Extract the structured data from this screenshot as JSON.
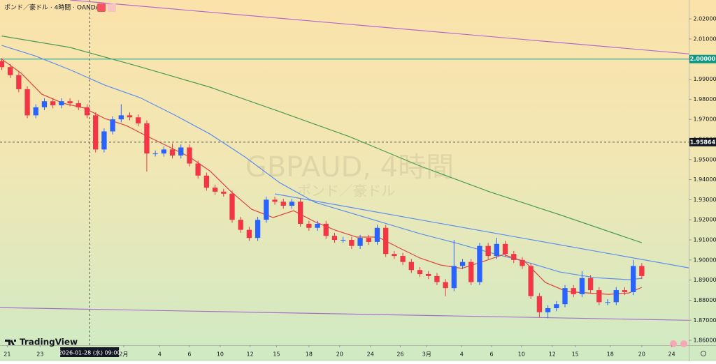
{
  "chart_data": {
    "type": "candlestick",
    "title": "ポンド／豪ドル · 4時間 · OANDA",
    "watermark": "GBPAUD, 4時間",
    "watermark_subtitle": "ポンド／豪ドル",
    "brand": "TradingView",
    "categories": [
      null,
      null,
      null,
      null,
      null,
      null,
      null,
      null,
      null,
      null,
      null,
      null,
      null,
      null,
      null,
      null,
      null,
      null,
      null,
      null,
      null,
      null,
      null,
      null,
      null,
      null,
      null,
      null,
      null,
      null,
      null,
      null,
      null,
      null,
      null,
      null,
      null,
      null,
      null,
      null,
      null,
      null,
      null,
      null,
      null,
      null,
      null,
      null,
      null,
      null,
      null,
      null,
      null,
      null,
      null,
      null,
      null,
      null,
      null,
      null,
      null,
      null,
      null,
      null,
      null,
      null,
      null,
      null,
      null,
      null,
      null,
      null,
      null,
      null,
      null,
      null
    ],
    "open": [
      1.999,
      1.996,
      1.992,
      1.985,
      1.972,
      1.976,
      1.979,
      1.977,
      1.979,
      1.978,
      1.976,
      1.972,
      1.955,
      1.964,
      1.97,
      1.972,
      1.971,
      1.968,
      1.953,
      1.953,
      1.955,
      1.952,
      1.956,
      1.948,
      1.942,
      1.936,
      1.934,
      1.933,
      1.92,
      1.915,
      1.911,
      1.92,
      1.93,
      1.929,
      1.927,
      1.929,
      1.918,
      1.916,
      1.918,
      1.912,
      1.91,
      1.91,
      1.907,
      1.911,
      1.909,
      1.916,
      1.903,
      1.902,
      1.899,
      1.895,
      1.893,
      1.892,
      1.889,
      1.886,
      1.897,
      1.899,
      1.889,
      1.907,
      1.902,
      1.908,
      1.903,
      1.9,
      1.897,
      1.882,
      1.874,
      1.876,
      1.878,
      1.886,
      1.883,
      1.891,
      1.885,
      1.879,
      1.879,
      1.885,
      1.884,
      1.897
    ],
    "high": [
      2.0005,
      1.9975,
      1.9935,
      1.9865,
      1.9775,
      1.9805,
      1.9805,
      1.9805,
      1.9805,
      1.9795,
      1.9775,
      1.9735,
      1.9655,
      1.9715,
      1.9775,
      1.9735,
      1.9725,
      1.9695,
      1.9545,
      1.9565,
      1.958,
      1.9575,
      1.9575,
      1.9495,
      1.9435,
      1.9375,
      1.9355,
      1.9345,
      1.9215,
      1.9165,
      1.9215,
      1.9315,
      1.9315,
      1.9305,
      1.9305,
      1.9305,
      1.9195,
      1.9195,
      1.9195,
      1.9135,
      1.9115,
      1.9115,
      1.9125,
      1.9125,
      1.9175,
      1.9175,
      1.9045,
      1.9035,
      1.9005,
      1.8965,
      1.8945,
      1.8935,
      1.8905,
      1.91,
      1.9005,
      1.9005,
      1.9085,
      1.9085,
      1.911,
      1.9095,
      1.9045,
      1.9015,
      1.8985,
      1.8835,
      1.8775,
      1.8795,
      1.8875,
      1.8875,
      1.8945,
      1.8925,
      1.8865,
      1.8805,
      1.8865,
      1.8865,
      1.9,
      1.8985
    ],
    "low": [
      1.9945,
      1.9905,
      1.9835,
      1.9705,
      1.9705,
      1.9745,
      1.9755,
      1.9755,
      1.9765,
      1.9745,
      1.9705,
      1.9535,
      1.9535,
      1.9625,
      1.9685,
      1.9695,
      1.9665,
      1.944,
      1.9515,
      1.9515,
      1.9505,
      1.9505,
      1.9465,
      1.9405,
      1.9345,
      1.9325,
      1.9315,
      1.9185,
      1.9135,
      1.9095,
      1.9095,
      1.9185,
      1.9275,
      1.9255,
      1.9255,
      1.9165,
      1.9145,
      1.9145,
      1.9105,
      1.9085,
      1.9085,
      1.9055,
      1.9055,
      1.9075,
      1.9075,
      1.9015,
      1.9005,
      1.8975,
      1.8935,
      1.8915,
      1.8905,
      1.8875,
      1.882,
      1.8845,
      1.8955,
      1.8875,
      1.8875,
      1.9005,
      1.9005,
      1.9015,
      1.8985,
      1.8955,
      1.8805,
      1.8715,
      1.871,
      1.8745,
      1.8765,
      1.8815,
      1.8815,
      1.8835,
      1.8775,
      1.8775,
      1.8775,
      1.8825,
      1.8825,
      1.8905
    ],
    "close": [
      1.996,
      1.992,
      1.985,
      1.972,
      1.976,
      1.979,
      1.977,
      1.979,
      1.978,
      1.976,
      1.972,
      1.955,
      1.964,
      1.97,
      1.972,
      1.971,
      1.968,
      1.953,
      1.953,
      1.955,
      1.952,
      1.956,
      1.948,
      1.942,
      1.936,
      1.934,
      1.933,
      1.92,
      1.915,
      1.911,
      1.92,
      1.93,
      1.929,
      1.927,
      1.929,
      1.918,
      1.916,
      1.918,
      1.912,
      1.91,
      1.91,
      1.907,
      1.911,
      1.909,
      1.916,
      1.903,
      1.902,
      1.899,
      1.895,
      1.893,
      1.892,
      1.889,
      1.886,
      1.897,
      1.899,
      1.889,
      1.907,
      1.902,
      1.908,
      1.903,
      1.9,
      1.897,
      1.882,
      1.874,
      1.876,
      1.878,
      1.886,
      1.883,
      1.891,
      1.885,
      1.879,
      1.879,
      1.885,
      1.884,
      1.897,
      1.892
    ],
    "up_color": "#2962ff",
    "down_color": "#f23645",
    "lines": [
      {
        "color": "#4c9a54",
        "x": [
          0,
          8,
          16,
          24.4,
          32.6,
          40.8,
          49,
          57.2,
          65.4,
          75
        ],
        "values": [
          2.0115,
          2.0058,
          1.9964,
          1.986,
          1.9738,
          1.9613,
          1.9468,
          1.9339,
          1.9225,
          1.9086
        ]
      },
      {
        "color": "#5b8ef0",
        "x": [
          0,
          3.9,
          8,
          12.1,
          16.2,
          20.3,
          24.4,
          28.5,
          32.6,
          36.7,
          40.8,
          44.9,
          49,
          53.1,
          57.2,
          61.3,
          65.4,
          69.5,
          73.5,
          75
        ],
        "values": [
          2.0068,
          2.0016,
          1.9947,
          1.987,
          1.9808,
          1.9721,
          1.9627,
          1.9513,
          1.9384,
          1.9287,
          1.9235,
          1.9183,
          1.9131,
          1.9086,
          1.9037,
          1.8992,
          1.894,
          1.8912,
          1.8902,
          1.8909
        ]
      },
      {
        "color": "#e0443e",
        "x": [
          0,
          2.3,
          4.7,
          7.2,
          9.7,
          12.1,
          14.6,
          17,
          19.5,
          22,
          24.4,
          26.9,
          29.3,
          31.8,
          34.2,
          36.7,
          39.1,
          41.6,
          44.1,
          46.5,
          49,
          51.4,
          53.9,
          56.4,
          58.8,
          61.3,
          63.7,
          66.2,
          68.6,
          71.1,
          73.5,
          75
        ],
        "values": [
          2.0,
          1.9929,
          1.9825,
          1.978,
          1.9756,
          1.9704,
          1.9669,
          1.9617,
          1.9565,
          1.9513,
          1.9443,
          1.9339,
          1.9252,
          1.9211,
          1.9245,
          1.919,
          1.9148,
          1.9114,
          1.9114,
          1.9062,
          1.901,
          1.8975,
          1.8958,
          1.8992,
          1.9027,
          1.8992,
          1.8888,
          1.8843,
          1.8836,
          1.8829,
          1.8836,
          1.8864
        ]
      },
      {
        "color": "#b36ad1",
        "x": [
          8,
          80.5
        ],
        "values": [
          2.0294,
          2.0026
        ]
      },
      {
        "color": "#a870cc",
        "x": [
          -0.2,
          80.5
        ],
        "values": [
          1.8763,
          1.87
        ]
      },
      {
        "color": "#5b8ef0",
        "x": [
          32,
          80.5
        ],
        "values": [
          1.9329,
          1.8961
        ]
      }
    ],
    "hlines": [
      {
        "value": 2.0,
        "label": "2.00000",
        "color": "#089981"
      }
    ],
    "crosshair": {
      "x": 10.3,
      "x_label": "2026-01-28 (水)  09:00",
      "y": 1.95864,
      "y_label": "1.95864"
    },
    "xlim": [
      -0.2,
      80.5
    ],
    "ylim": [
      1.8576,
      2.0294
    ],
    "xticks": [
      {
        "value": 0.65,
        "label": "21"
      },
      {
        "value": 4.5,
        "label": "23"
      },
      {
        "value": 14.3,
        "label": "2月"
      },
      {
        "value": 18.5,
        "label": "4"
      },
      {
        "value": 22,
        "label": "6"
      },
      {
        "value": 25.6,
        "label": "10"
      },
      {
        "value": 29.1,
        "label": "12"
      },
      {
        "value": 32.2,
        "label": "15"
      },
      {
        "value": 36,
        "label": "18"
      },
      {
        "value": 39.6,
        "label": "20"
      },
      {
        "value": 43.2,
        "label": "24"
      },
      {
        "value": 46.7,
        "label": "26"
      },
      {
        "value": 49.8,
        "label": "3月"
      },
      {
        "value": 53.9,
        "label": "4"
      },
      {
        "value": 57.4,
        "label": "6"
      },
      {
        "value": 60.9,
        "label": "10"
      },
      {
        "value": 64.5,
        "label": "12"
      },
      {
        "value": 67.2,
        "label": "15"
      },
      {
        "value": 71.3,
        "label": "18"
      },
      {
        "value": 75,
        "label": "20"
      },
      {
        "value": 78.5,
        "label": "24"
      }
    ],
    "yticks": [
      {
        "value": 1.86,
        "label": "1.86000"
      },
      {
        "value": 1.87,
        "label": "1.87000"
      },
      {
        "value": 1.88,
        "label": "1.88000"
      },
      {
        "value": 1.89,
        "label": "1.89000"
      },
      {
        "value": 1.9,
        "label": "1.90000"
      },
      {
        "value": 1.91,
        "label": "1.91000"
      },
      {
        "value": 1.92,
        "label": "1.92000"
      },
      {
        "value": 1.93,
        "label": "1.93000"
      },
      {
        "value": 1.94,
        "label": "1.94000"
      },
      {
        "value": 1.95,
        "label": "1.95000"
      },
      {
        "value": 1.96,
        "label": "1.96000"
      },
      {
        "value": 1.97,
        "label": "1.97000"
      },
      {
        "value": 1.98,
        "label": "1.98000"
      },
      {
        "value": 1.99,
        "label": "1.99000"
      },
      {
        "value": 2.0,
        "label": "2.00000"
      },
      {
        "value": 2.01,
        "label": "2.01000"
      },
      {
        "value": 2.02,
        "label": "2.02000"
      }
    ]
  }
}
